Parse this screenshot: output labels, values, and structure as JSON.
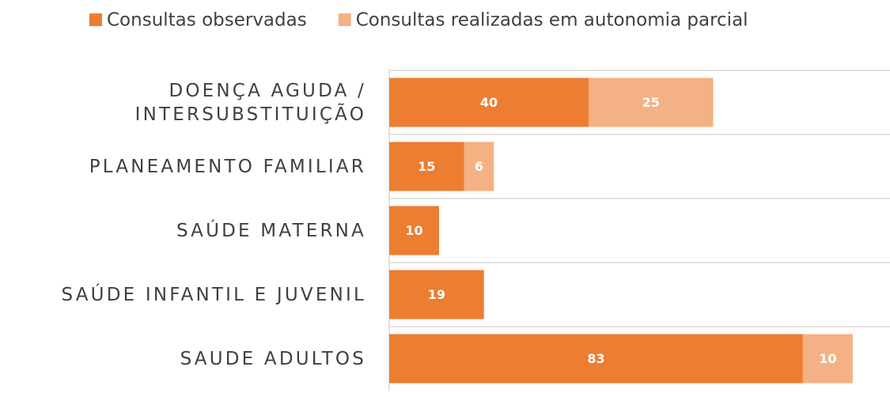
{
  "chart_data": {
    "type": "stacked_bar_horizontal",
    "categories": [
      "DOENÇA AGUDA / INTERSUBSTITUIÇÃO",
      "PLANEAMENTO FAMILIAR",
      "SAÚDE MATERNA",
      "SAÚDE INFANTIL E JUVENIL",
      "SAUDE ADULTOS"
    ],
    "series": [
      {
        "name": "Consultas observadas",
        "color": "#ED7D31",
        "values": [
          40,
          15,
          10,
          19,
          83
        ]
      },
      {
        "name": "Consultas realizadas em autonomia parcial",
        "color": "#F4B183",
        "values": [
          25,
          6,
          null,
          null,
          10
        ]
      }
    ],
    "xlim": [
      0,
      100
    ],
    "grid": true,
    "legend": "top"
  }
}
